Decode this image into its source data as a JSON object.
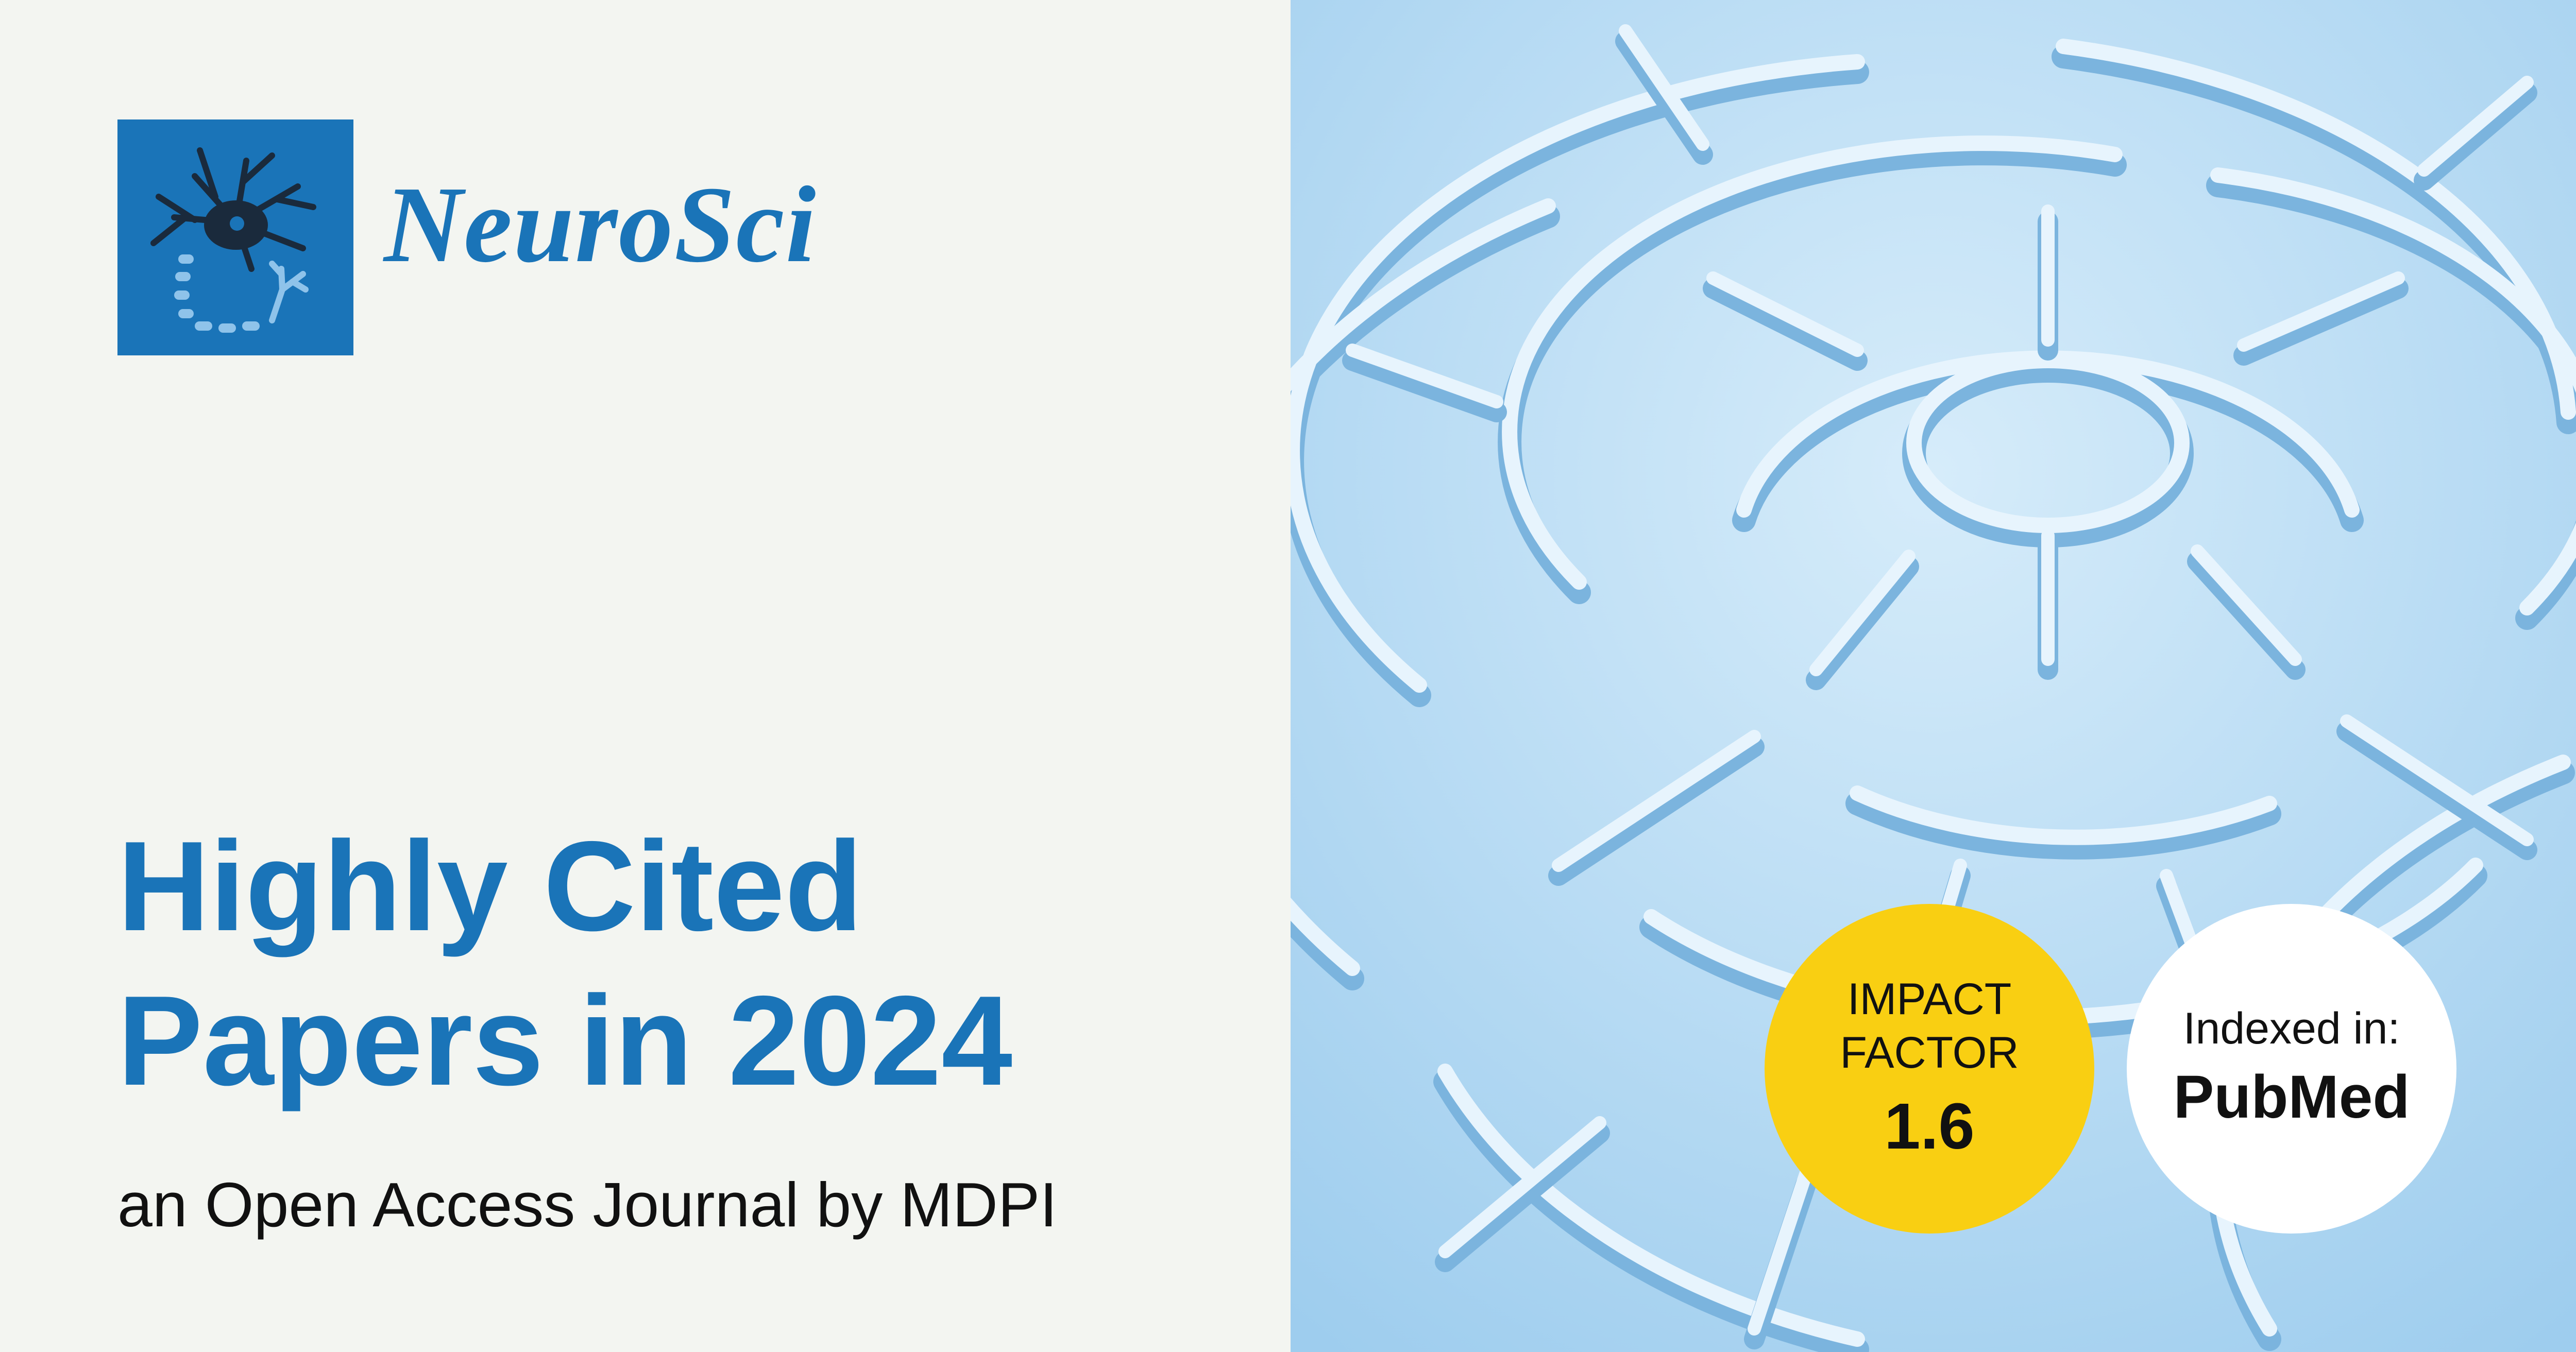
{
  "colors": {
    "brand_blue": "#1a74b8",
    "left_background": "#f3f5f1",
    "maze_blue": "#a9d3f0",
    "impact_badge": "#f9cf12",
    "pubmed_badge": "#ffffff"
  },
  "logo": {
    "icon": "neuron-icon",
    "journal_name": "NeuroSci"
  },
  "headline": {
    "line1": "Highly Cited",
    "line2": "Papers in 2024"
  },
  "subtitle": "an Open Access Journal by MDPI",
  "background_image": "maze-illustration",
  "badges": {
    "impact_factor": {
      "line1": "IMPACT",
      "line2": "FACTOR",
      "value": "1.6"
    },
    "indexed": {
      "label": "Indexed in:",
      "value": "PubMed"
    }
  }
}
